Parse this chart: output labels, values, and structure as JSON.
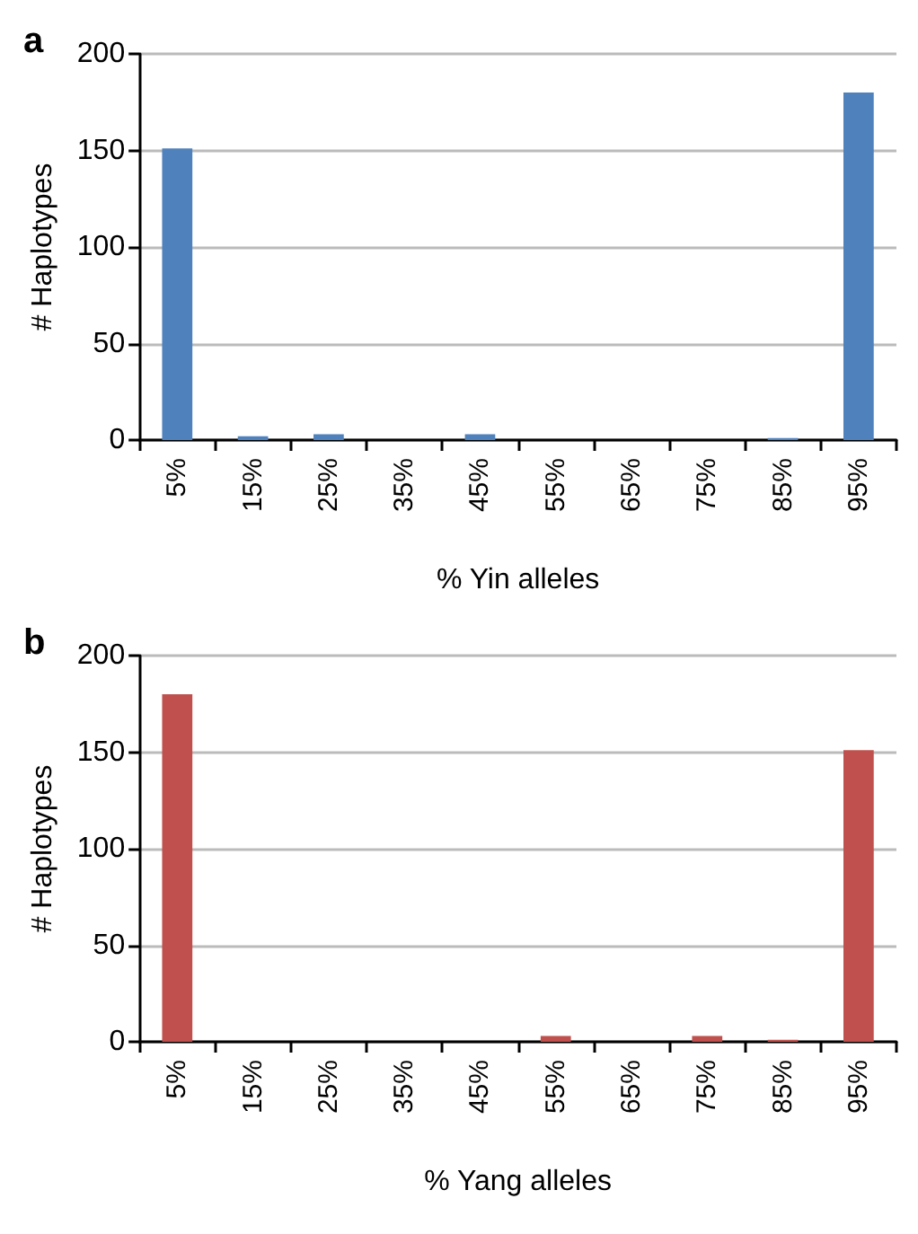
{
  "chart_data": [
    {
      "type": "bar",
      "title": "a",
      "categories": [
        "5%",
        "15%",
        "25%",
        "35%",
        "45%",
        "55%",
        "65%",
        "75%",
        "85%",
        "95%"
      ],
      "values": [
        151,
        2,
        3,
        0,
        3,
        0,
        0,
        0,
        1,
        180
      ],
      "color": "#4f81bd",
      "xlabel": "% Yin alleles",
      "ylabel": "# Haplotypes",
      "ylim": [
        0,
        200
      ],
      "yticks": [
        0,
        50,
        100,
        150,
        200
      ],
      "grid": "y"
    },
    {
      "type": "bar",
      "title": "b",
      "categories": [
        "5%",
        "15%",
        "25%",
        "35%",
        "45%",
        "55%",
        "65%",
        "75%",
        "85%",
        "95%"
      ],
      "values": [
        180,
        0,
        0,
        0,
        0,
        3,
        0,
        3,
        1,
        151
      ],
      "color": "#c0504d",
      "xlabel": "% Yang alleles",
      "ylabel": "# Haplotypes",
      "ylim": [
        0,
        200
      ],
      "yticks": [
        0,
        50,
        100,
        150,
        200
      ],
      "grid": "y"
    }
  ]
}
